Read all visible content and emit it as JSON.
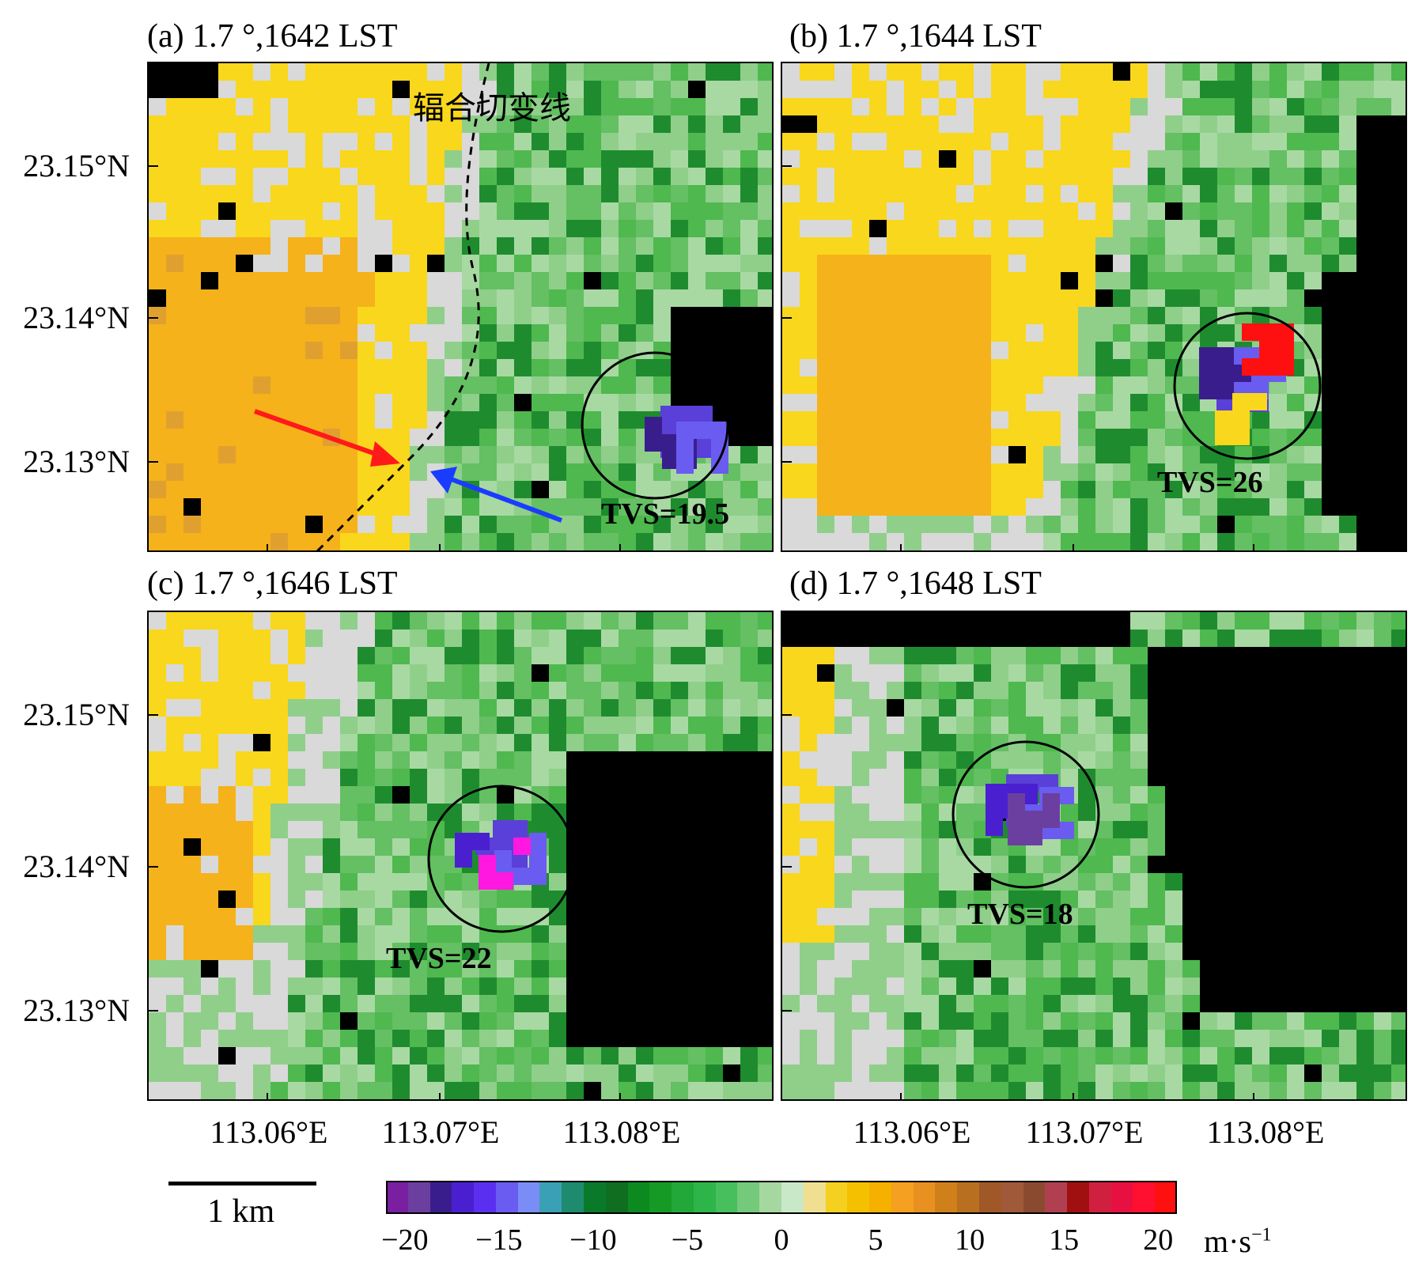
{
  "panels": [
    {
      "id": "a",
      "title": "(a) 1.7 °,1642 LST",
      "tvs": "TVS=19.5",
      "annotation": "辐合切变线"
    },
    {
      "id": "b",
      "title": "(b) 1.7 °,1644 LST",
      "tvs": "TVS=26"
    },
    {
      "id": "c",
      "title": "(c) 1.7 °,1646 LST",
      "tvs": "TVS=22"
    },
    {
      "id": "d",
      "title": "(d) 1.7 °,1648 LST",
      "tvs": "TVS=18"
    }
  ],
  "axes": {
    "lat_ticks": [
      "23.15°N",
      "23.14°N",
      "23.13°N"
    ],
    "lon_ticks": [
      "113.06°E",
      "113.07°E",
      "113.08°E"
    ]
  },
  "scale_bar": {
    "label": "1 km"
  },
  "colorbar": {
    "tick_labels": [
      "−20",
      "−15",
      "−10",
      "−5",
      "0",
      "5",
      "10",
      "15",
      "20"
    ],
    "unit": "m·s",
    "unit_exp": "−1",
    "range": [
      -21,
      21
    ],
    "colors": [
      "#7a1fa2",
      "#6b3fa0",
      "#3a1d8c",
      "#4a1fd0",
      "#5a2ff0",
      "#6a5cf0",
      "#7a8cf5",
      "#3aa0b5",
      "#1e8a6e",
      "#0a7a2a",
      "#0f6e1f",
      "#0c8a20",
      "#159a25",
      "#22a838",
      "#2eb54a",
      "#46bf5c",
      "#74c97a",
      "#a5d89f",
      "#c9e8c8",
      "#f0df90",
      "#f5d020",
      "#f5c000",
      "#f5b000",
      "#f5a020",
      "#e89020",
      "#d0801a",
      "#b87020",
      "#a05828",
      "#a05a3a",
      "#8a4a30",
      "#b04050",
      "#a01010",
      "#d02040",
      "#e81040",
      "#ff1030",
      "#ff1010"
    ]
  },
  "colors": {
    "yellow": "#f9d71c",
    "orange": "#f5b21a",
    "gray": "#d9d9d9",
    "light_green": "#8fcf8a",
    "mid_green": "#4fb84f",
    "dark_green": "#1e8c2e",
    "black": "#000000",
    "purple": "#5a3fd8",
    "magenta": "#ff19e0",
    "red_arrow": "#ff1a1a",
    "blue_arrow": "#1a3cff"
  }
}
